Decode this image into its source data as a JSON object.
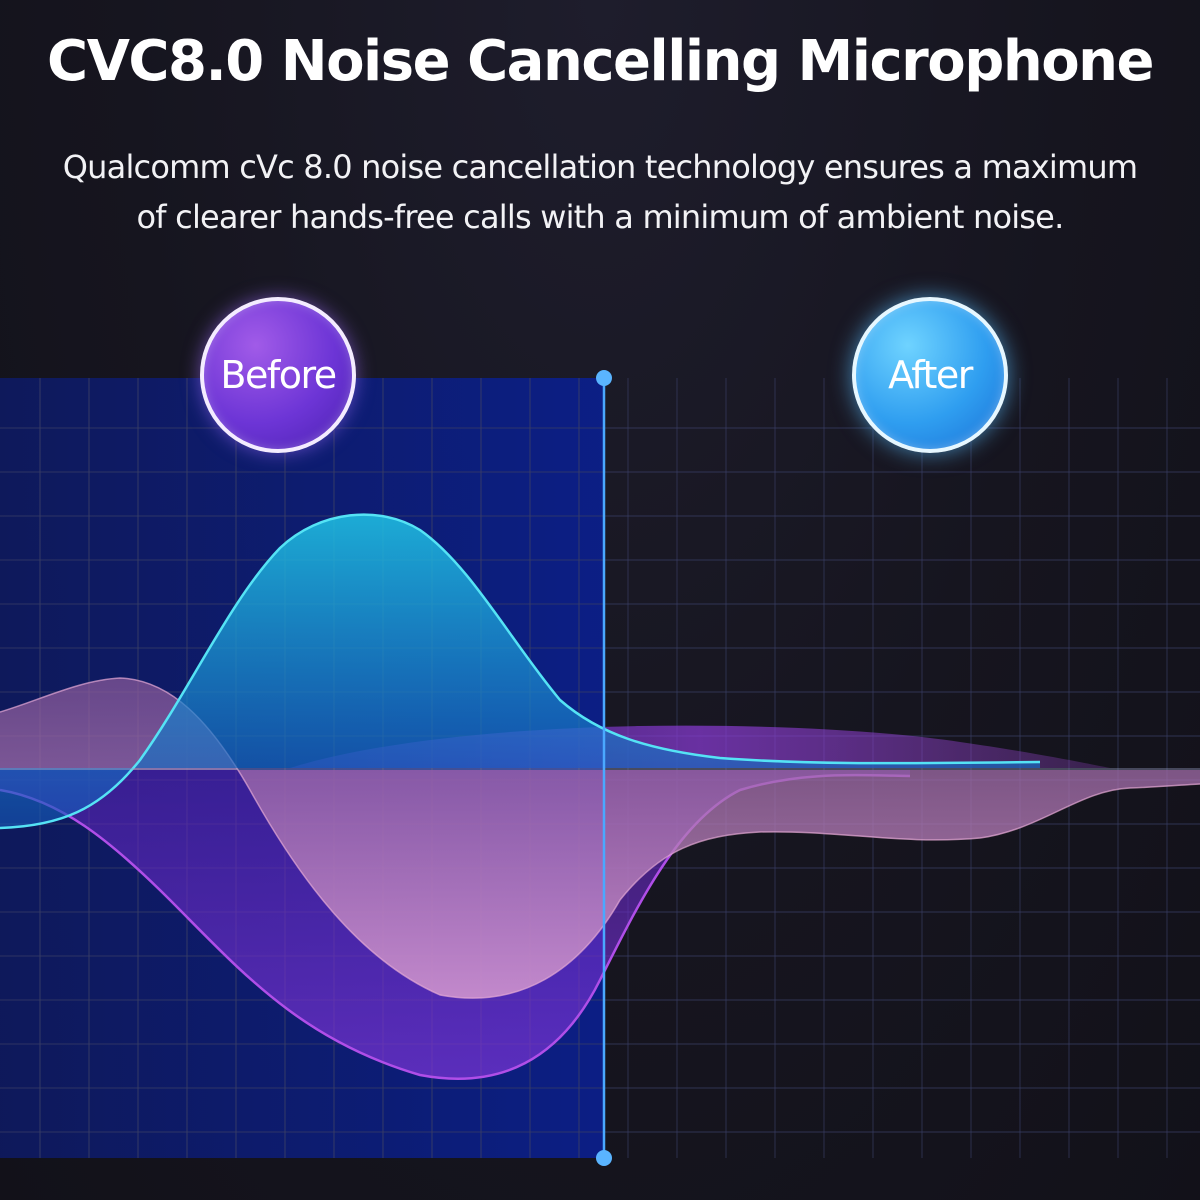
{
  "header": {
    "title": "CVC8.0 Noise Cancelling Microphone",
    "subtitle_line1": "Qualcomm cVc 8.0 noise cancellation technology ensures a maximum",
    "subtitle_line2": "of clearer hands-free calls with a minimum of ambient noise."
  },
  "comparison": {
    "before_label": "Before",
    "after_label": "After"
  },
  "colors": {
    "background": "#161621",
    "before_panel": "#0c1a6e",
    "grid_line": "#3a3f66",
    "divider": "#4aa8ff",
    "voice_wave": "#2fd0e8",
    "noise_wave_pink": "#d896c8",
    "noise_wave_violet": "#9a3de0"
  }
}
